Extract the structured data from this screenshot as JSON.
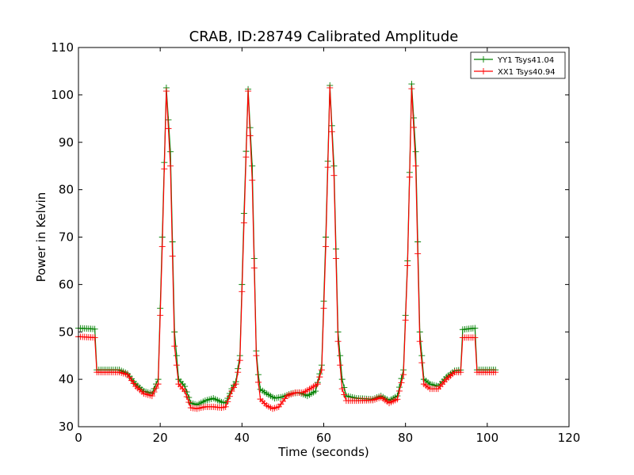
{
  "colors": {
    "yy1": "#008000",
    "xx1": "#ff0000",
    "axes": "#000000"
  },
  "chart_data": {
    "type": "line",
    "title": "CRAB, ID:28749 Calibrated Amplitude",
    "xlabel": "Time (seconds)",
    "ylabel": "Power in Kelvin",
    "xlim": [
      0,
      120
    ],
    "ylim": [
      30,
      110
    ],
    "xticks": [
      "0",
      "20",
      "40",
      "60",
      "80",
      "100",
      "120"
    ],
    "yticks": [
      "30",
      "40",
      "50",
      "60",
      "70",
      "80",
      "90",
      "100",
      "110"
    ],
    "grid": false,
    "legend_placement": "top-right",
    "marker": "+",
    "sample_interval": 0.5,
    "series": [
      {
        "name": "YY1 Tsys41.04",
        "color": "#008000",
        "points": [
          [
            0,
            50.8
          ],
          [
            4,
            50.6
          ],
          [
            4.2,
            42
          ],
          [
            10,
            42
          ],
          [
            12,
            41.2
          ],
          [
            14,
            39
          ],
          [
            16,
            37.5
          ],
          [
            18,
            37
          ],
          [
            19.5,
            40
          ],
          [
            20.5,
            70
          ],
          [
            21.5,
            101.5
          ],
          [
            22.5,
            88
          ],
          [
            23.5,
            50
          ],
          [
            24.5,
            40
          ],
          [
            26,
            38.5
          ],
          [
            27.5,
            35
          ],
          [
            29,
            34.6
          ],
          [
            31,
            35.5
          ],
          [
            33,
            36
          ],
          [
            35,
            35.2
          ],
          [
            36,
            35
          ],
          [
            37.5,
            38
          ],
          [
            38.5,
            39.5
          ],
          [
            39.5,
            45
          ],
          [
            40.5,
            75
          ],
          [
            41.5,
            101.2
          ],
          [
            42.5,
            85
          ],
          [
            43.5,
            46
          ],
          [
            44.3,
            38
          ],
          [
            46,
            37
          ],
          [
            48,
            36
          ],
          [
            50,
            36.3
          ],
          [
            52,
            37
          ],
          [
            54,
            37.2
          ],
          [
            56,
            36.5
          ],
          [
            58,
            37.5
          ],
          [
            59.5,
            43
          ],
          [
            60.5,
            70
          ],
          [
            61.5,
            102
          ],
          [
            62.5,
            85
          ],
          [
            63.5,
            50
          ],
          [
            64.5,
            40
          ],
          [
            65.5,
            36.5
          ],
          [
            68,
            36
          ],
          [
            72,
            35.8
          ],
          [
            74,
            36.5
          ],
          [
            76,
            35.5
          ],
          [
            78,
            36.5
          ],
          [
            79.5,
            42
          ],
          [
            80.5,
            65
          ],
          [
            81.5,
            102.3
          ],
          [
            82.5,
            88
          ],
          [
            83.5,
            50
          ],
          [
            84.5,
            40
          ],
          [
            86,
            39
          ],
          [
            88,
            38.5
          ],
          [
            90,
            40.5
          ],
          [
            92,
            41.8
          ],
          [
            93.8,
            42
          ],
          [
            94,
            50.5
          ],
          [
            97,
            50.8
          ],
          [
            97.2,
            42
          ],
          [
            102,
            42
          ]
        ]
      },
      {
        "name": "XX1 Tsys40.94",
        "color": "#ff0000",
        "points": [
          [
            0,
            49
          ],
          [
            4,
            48.8
          ],
          [
            4.2,
            41.5
          ],
          [
            10,
            41.5
          ],
          [
            12,
            41
          ],
          [
            14,
            38.5
          ],
          [
            16,
            37
          ],
          [
            18,
            36.5
          ],
          [
            19.5,
            39
          ],
          [
            20.5,
            68
          ],
          [
            21.5,
            100.8
          ],
          [
            22.5,
            85
          ],
          [
            23.5,
            47
          ],
          [
            24.5,
            39
          ],
          [
            26,
            37.5
          ],
          [
            27.5,
            34
          ],
          [
            29,
            33.8
          ],
          [
            31,
            34.2
          ],
          [
            33,
            34.2
          ],
          [
            35,
            34
          ],
          [
            36,
            34.2
          ],
          [
            37.5,
            37.5
          ],
          [
            38.5,
            39
          ],
          [
            39.5,
            44
          ],
          [
            40.5,
            73
          ],
          [
            41.5,
            100.8
          ],
          [
            42.5,
            82
          ],
          [
            43.5,
            45
          ],
          [
            44.3,
            36
          ],
          [
            46,
            34.5
          ],
          [
            47.5,
            33.8
          ],
          [
            49,
            34.2
          ],
          [
            51,
            36.5
          ],
          [
            53,
            37.2
          ],
          [
            55,
            37.2
          ],
          [
            57,
            38.2
          ],
          [
            58.5,
            39
          ],
          [
            59.5,
            42
          ],
          [
            60.5,
            68
          ],
          [
            61.5,
            101.5
          ],
          [
            62.5,
            83
          ],
          [
            63.5,
            48
          ],
          [
            64.5,
            38
          ],
          [
            65.5,
            35.5
          ],
          [
            68,
            35.5
          ],
          [
            72,
            35.6
          ],
          [
            74,
            36.2
          ],
          [
            76,
            35
          ],
          [
            78,
            35.8
          ],
          [
            79.5,
            41
          ],
          [
            80.5,
            64
          ],
          [
            81.5,
            101.3
          ],
          [
            82.5,
            85
          ],
          [
            83.5,
            48
          ],
          [
            84.5,
            39
          ],
          [
            86,
            38
          ],
          [
            88,
            38
          ],
          [
            90,
            40
          ],
          [
            92,
            41.5
          ],
          [
            93.8,
            41.5
          ],
          [
            94,
            48.8
          ],
          [
            97,
            48.8
          ],
          [
            97.2,
            41.5
          ],
          [
            102,
            41.5
          ]
        ]
      }
    ]
  }
}
